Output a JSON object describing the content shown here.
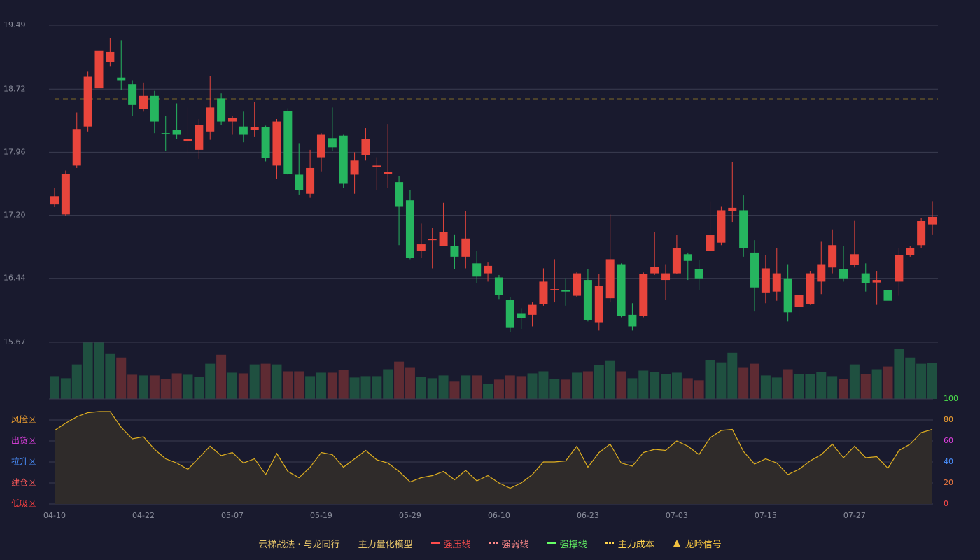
{
  "chart_data": [
    {
      "type": "candlestick",
      "categories": [
        "04-10",
        null,
        null,
        null,
        null,
        null,
        null,
        null,
        "04-22",
        null,
        null,
        null,
        null,
        null,
        null,
        null,
        "05-07",
        null,
        null,
        null,
        null,
        null,
        null,
        null,
        "05-19",
        null,
        null,
        null,
        null,
        null,
        null,
        null,
        "05-29",
        null,
        null,
        null,
        null,
        null,
        null,
        null,
        "06-10",
        null,
        null,
        null,
        null,
        null,
        null,
        null,
        "06-23",
        null,
        null,
        null,
        null,
        null,
        null,
        null,
        "07-03",
        null,
        null,
        null,
        null,
        null,
        null,
        null,
        "07-15",
        null,
        null,
        null,
        null,
        null,
        null,
        null,
        "07-27",
        null,
        null,
        null,
        null,
        null,
        null,
        null
      ],
      "open": [
        17.33,
        17.21,
        17.8,
        18.27,
        18.73,
        19.05,
        18.86,
        18.78,
        18.48,
        18.64,
        18.19,
        18.23,
        18.09,
        17.99,
        18.21,
        18.61,
        18.33,
        18.27,
        18.23,
        18.26,
        17.8,
        18.46,
        17.69,
        17.46,
        17.9,
        18.13,
        18.16,
        17.69,
        17.93,
        17.78,
        17.7,
        17.6,
        17.38,
        16.77,
        16.9,
        16.83,
        16.83,
        16.7,
        16.62,
        16.5,
        16.45,
        16.18,
        16.02,
        16.0,
        16.13,
        16.3,
        16.3,
        16.23,
        16.42,
        15.91,
        16.2,
        16.61,
        16.0,
        15.99,
        16.5,
        16.42,
        16.5,
        16.73,
        16.55,
        16.77,
        16.87,
        17.25,
        17.26,
        16.75,
        16.27,
        16.28,
        16.44,
        16.1,
        16.13,
        16.4,
        16.57,
        16.55,
        16.6,
        16.5,
        16.39,
        16.3,
        16.4,
        16.72,
        16.84,
        17.09
      ],
      "high": [
        17.53,
        17.74,
        18.44,
        18.93,
        19.39,
        19.33,
        19.31,
        18.82,
        18.8,
        18.7,
        18.4,
        18.55,
        18.5,
        18.36,
        18.88,
        18.67,
        18.4,
        18.45,
        18.57,
        18.28,
        18.36,
        18.49,
        18.07,
        17.99,
        18.19,
        18.5,
        18.17,
        17.96,
        18.25,
        17.9,
        18.3,
        17.67,
        17.5,
        17.1,
        17.05,
        17.35,
        16.97,
        17.25,
        16.77,
        16.63,
        16.48,
        16.21,
        16.08,
        16.15,
        16.56,
        16.67,
        16.44,
        16.52,
        16.55,
        16.49,
        17.21,
        16.62,
        16.14,
        16.51,
        17.0,
        16.61,
        16.96,
        16.75,
        16.66,
        17.37,
        17.31,
        17.84,
        17.44,
        16.9,
        16.72,
        16.8,
        16.61,
        16.27,
        16.53,
        16.88,
        17.03,
        16.83,
        17.14,
        16.62,
        16.53,
        16.4,
        16.8,
        16.83,
        17.17,
        17.37
      ],
      "low": [
        17.3,
        17.19,
        17.77,
        18.21,
        18.71,
        18.99,
        18.71,
        18.4,
        18.45,
        18.19,
        17.98,
        18.12,
        17.94,
        17.88,
        18.11,
        18.29,
        18.17,
        18.08,
        18.15,
        17.85,
        17.64,
        17.69,
        17.45,
        17.41,
        17.73,
        17.98,
        17.53,
        17.46,
        17.86,
        17.5,
        17.53,
        16.84,
        16.67,
        16.69,
        16.56,
        16.83,
        16.55,
        16.56,
        16.38,
        16.4,
        16.19,
        15.79,
        15.83,
        15.86,
        16.11,
        16.15,
        16.11,
        16.21,
        15.92,
        15.81,
        16.15,
        15.97,
        15.81,
        15.97,
        16.48,
        16.18,
        16.49,
        16.42,
        16.3,
        16.76,
        16.84,
        17.12,
        16.7,
        16.04,
        16.14,
        16.17,
        15.92,
        15.98,
        16.12,
        16.25,
        16.5,
        16.4,
        16.57,
        16.28,
        16.12,
        16.11,
        16.23,
        16.7,
        16.8,
        16.97
      ],
      "close": [
        17.43,
        17.7,
        18.24,
        18.87,
        19.18,
        19.17,
        18.82,
        18.53,
        18.64,
        18.33,
        18.18,
        18.17,
        18.12,
        18.29,
        18.5,
        18.33,
        18.37,
        18.17,
        18.26,
        17.89,
        18.33,
        17.7,
        17.5,
        17.77,
        18.17,
        18.02,
        17.58,
        17.86,
        18.12,
        17.8,
        17.72,
        17.31,
        16.69,
        16.85,
        16.91,
        17.0,
        16.7,
        16.92,
        16.46,
        16.59,
        16.24,
        15.85,
        15.96,
        16.12,
        16.4,
        16.31,
        16.28,
        16.5,
        15.94,
        16.35,
        16.67,
        15.99,
        15.86,
        16.49,
        16.58,
        16.5,
        16.8,
        16.65,
        16.44,
        16.96,
        17.26,
        17.29,
        16.8,
        16.33,
        16.56,
        16.5,
        16.03,
        16.24,
        16.5,
        16.61,
        16.84,
        16.44,
        16.73,
        16.38,
        16.42,
        16.17,
        16.72,
        16.8,
        17.13,
        17.18
      ],
      "up_color": "#e8453c",
      "down_color": "#26b55f",
      "ylim": [
        15.67,
        19.49
      ],
      "yticks": [
        19.49,
        18.72,
        17.96,
        {
          "value": 17.2,
          "label": "17.20"
        },
        16.44,
        15.67
      ],
      "grid": true,
      "hlines": [
        {
          "value": 18.6,
          "color": "#e8b923",
          "style": "dashed"
        }
      ]
    },
    {
      "type": "volume",
      "values": [
        33,
        30,
        50,
        82,
        82,
        65,
        60,
        35,
        34,
        34,
        29,
        37,
        35,
        32,
        51,
        64,
        38,
        37,
        50,
        51,
        50,
        40,
        40,
        33,
        38,
        38,
        42,
        31,
        33,
        33,
        43,
        54,
        45,
        32,
        30,
        34,
        25,
        34,
        34,
        22,
        28,
        34,
        33,
        37,
        40,
        29,
        28,
        38,
        40,
        49,
        55,
        40,
        30,
        41,
        39,
        36,
        38,
        30,
        27,
        56,
        53,
        67,
        45,
        51,
        34,
        31,
        43,
        36,
        36,
        39,
        33,
        29,
        50,
        36,
        43,
        47,
        72,
        60,
        51,
        52
      ],
      "colors": [
        "#1f5040",
        "#1f5040",
        "#1f5040",
        "#1f5040",
        "#1f5040",
        "#1f5040",
        "#5e2b33",
        "#5e2b33",
        "#1f5040",
        "#5e2b33",
        "#5e2b33",
        "#5e2b33",
        "#1f5040",
        "#1f5040",
        "#1f5040",
        "#5e2b33",
        "#1f5040",
        "#5e2b33",
        "#1f5040",
        "#5e2b33",
        "#1f5040",
        "#5e2b33",
        "#5e2b33",
        "#1f5040",
        "#1f5040",
        "#5e2b33",
        "#5e2b33",
        "#1f5040",
        "#1f5040",
        "#1f5040",
        "#1f5040",
        "#5e2b33",
        "#5e2b33",
        "#1f5040",
        "#1f5040",
        "#1f5040",
        "#5e2b33",
        "#1f5040",
        "#5e2b33",
        "#1f5040",
        "#5e2b33",
        "#5e2b33",
        "#5e2b33",
        "#1f5040",
        "#1f5040",
        "#1f5040",
        "#5e2b33",
        "#1f5040",
        "#5e2b33",
        "#1f5040",
        "#1f5040",
        "#5e2b33",
        "#1f5040",
        "#1f5040",
        "#1f5040",
        "#1f5040",
        "#1f5040",
        "#5e2b33",
        "#5e2b33",
        "#1f5040",
        "#1f5040",
        "#1f5040",
        "#5e2b33",
        "#5e2b33",
        "#1f5040",
        "#1f5040",
        "#5e2b33",
        "#1f5040",
        "#1f5040",
        "#1f5040",
        "#1f5040",
        "#5e2b33",
        "#1f5040",
        "#5e2b33",
        "#1f5040",
        "#5e2b33",
        "#1f5040",
        "#1f5040",
        "#1f5040",
        "#1f5040"
      ]
    },
    {
      "type": "area",
      "values": [
        70,
        77,
        83,
        87,
        88,
        88,
        73,
        62,
        64,
        52,
        43,
        39,
        33,
        44,
        55,
        46,
        49,
        39,
        43,
        28,
        48,
        31,
        25,
        35,
        49,
        47,
        35,
        43,
        51,
        42,
        39,
        31,
        21,
        25,
        27,
        31,
        23,
        32,
        22,
        27,
        20,
        15,
        20,
        28,
        40,
        40,
        41,
        55,
        35,
        49,
        57,
        39,
        36,
        49,
        52,
        51,
        60,
        55,
        47,
        63,
        70,
        71,
        50,
        38,
        43,
        39,
        28,
        33,
        41,
        47,
        57,
        44,
        55,
        44,
        45,
        34,
        51,
        57,
        68,
        71
      ],
      "color": "#e0b020",
      "fill": "#2f2b2a",
      "ylim": [
        0,
        100
      ],
      "yticks": [
        0,
        20,
        40,
        60,
        80,
        100
      ],
      "ytick_colors": [
        "#ff4a4a",
        "#f07a40",
        "#4a90ff",
        "#e040e0",
        "#f0a030",
        "#4ce04c"
      ],
      "zones": [
        {
          "label": "风险区",
          "value": 80,
          "color": "#f0a030"
        },
        {
          "label": "出货区",
          "value": 60,
          "color": "#e040e0"
        },
        {
          "label": "拉升区",
          "value": 40,
          "color": "#4a90ff"
        },
        {
          "label": "建仓区",
          "value": 20,
          "color": "#ff5a5a"
        },
        {
          "label": "低吸区",
          "value": 0,
          "color": "#ff4040"
        }
      ]
    }
  ],
  "legend": {
    "title": "云梯战法 · 与龙同行——主力量化模型",
    "items": [
      {
        "label": "强压线",
        "color": "#ff4d4d",
        "style": "solid"
      },
      {
        "label": "强弱线",
        "color": "#ff8a8a",
        "style": "dashed"
      },
      {
        "label": "强撑线",
        "color": "#66ff66",
        "style": "solid"
      },
      {
        "label": "主力成本",
        "color": "#ffd34d",
        "style": "dashed"
      },
      {
        "label": "龙吟信号",
        "color": "#f0c040",
        "style": "triangle"
      }
    ]
  }
}
